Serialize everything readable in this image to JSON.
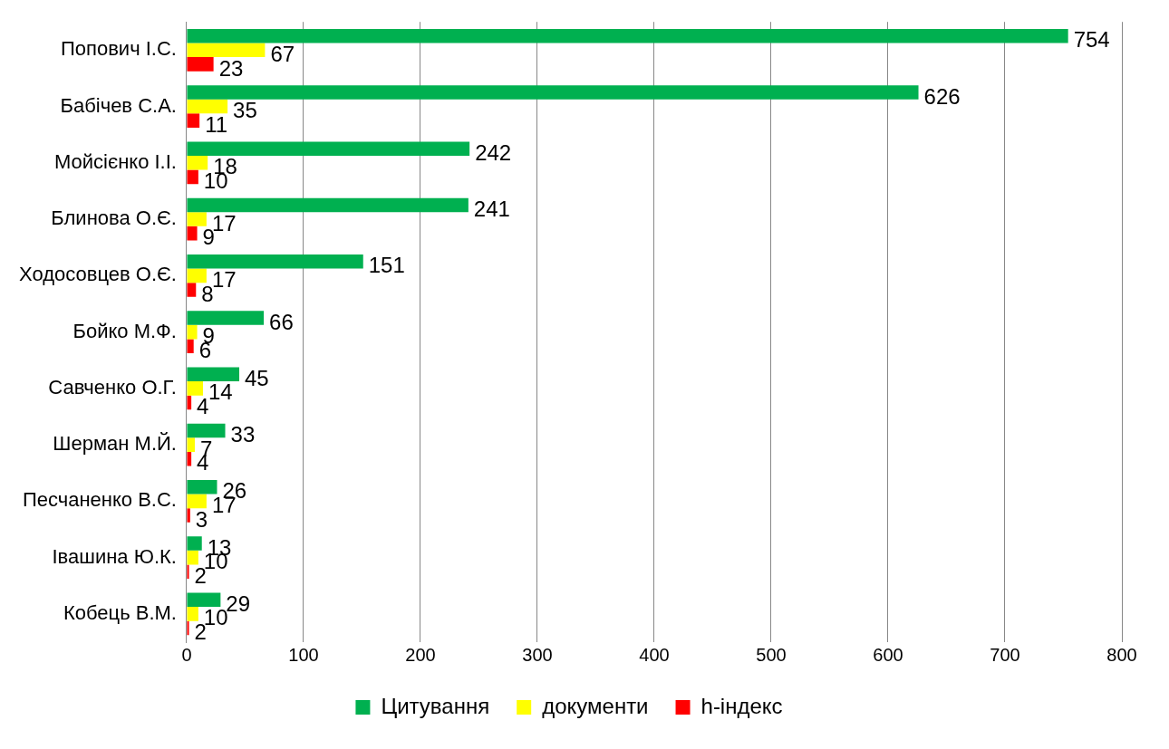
{
  "chart_data": {
    "type": "bar",
    "orientation": "horizontal",
    "categories": [
      "Попович І.С.",
      "Бабічев С.А.",
      "Мойсієнко І.І.",
      "Блинова О.Є.",
      "Ходосовцев О.Є.",
      "Бойко М.Ф.",
      "Савченко О.Г.",
      "Шерман М.Й.",
      "Песчаненко В.С.",
      "Івашина Ю.К.",
      "Кобець В.М."
    ],
    "series": [
      {
        "name": "Цитування",
        "color": "#00b050",
        "values": [
          754,
          626,
          242,
          241,
          151,
          66,
          45,
          33,
          26,
          13,
          29
        ]
      },
      {
        "name": "документи",
        "color": "#ffff00",
        "values": [
          67,
          35,
          18,
          17,
          17,
          9,
          14,
          7,
          17,
          10,
          10
        ]
      },
      {
        "name": "h-індекс",
        "color": "#ff0000",
        "values": [
          23,
          11,
          10,
          9,
          8,
          6,
          4,
          4,
          3,
          2,
          2
        ]
      }
    ],
    "xlim": [
      0,
      800
    ],
    "xticks": [
      0,
      100,
      200,
      300,
      400,
      500,
      600,
      700,
      800
    ],
    "grid": "x",
    "legend": "bottom",
    "data_labels": true
  }
}
